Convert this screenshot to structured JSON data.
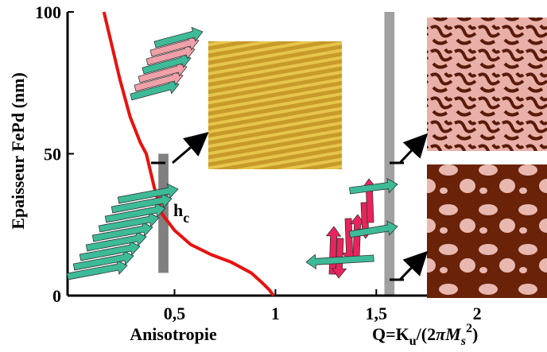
{
  "chart_data": {
    "type": "line",
    "ylabel": "Epaisseur FePd (nm)",
    "xlabel": "Anisotropie",
    "xlabel2": [
      "Q=K",
      "u",
      "/(2",
      "π",
      "M",
      "s",
      "2",
      ")"
    ],
    "annotation": [
      "h",
      "c"
    ],
    "series": [
      {
        "name": "h_c",
        "color": "#e8120f",
        "x": [
          0.15,
          0.19,
          0.23,
          0.28,
          0.33,
          0.36,
          0.4,
          0.44,
          0.5,
          0.58,
          0.68,
          0.78,
          0.88,
          0.93,
          0.97,
          0.99
        ],
        "values": [
          100,
          88,
          76,
          63,
          54,
          50,
          38,
          28.6,
          23,
          18,
          14.5,
          11.8,
          8,
          4.8,
          2,
          0
        ]
      }
    ],
    "bars": [
      {
        "color": "#808080",
        "x": [
          0.42,
          0.47
        ],
        "y": [
          8,
          50
        ]
      },
      {
        "color": "#a0a0a0",
        "x": [
          1.54,
          1.59
        ],
        "y": [
          0,
          100
        ]
      }
    ],
    "xlim": [
      -0.03,
      2.35
    ],
    "ylim": [
      0,
      100
    ],
    "xticks": [
      {
        "value": 0.5,
        "label": "0,5"
      },
      1,
      {
        "value": 1.5,
        "label": "1,5"
      },
      2
    ],
    "yticks": [
      0,
      50,
      100
    ]
  }
}
